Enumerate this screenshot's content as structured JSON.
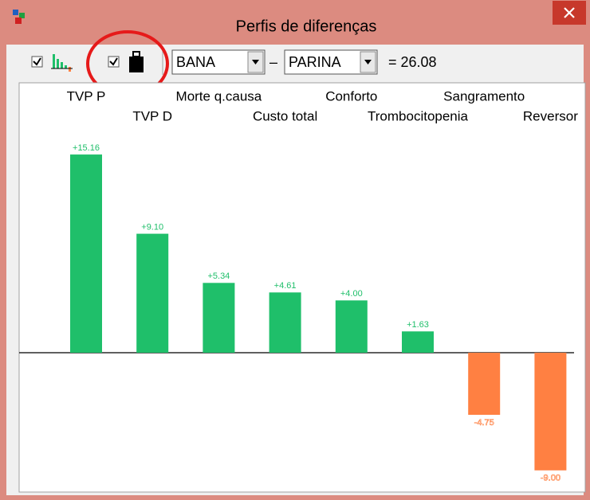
{
  "window": {
    "title": "Perfis de diferenças"
  },
  "toolbar": {
    "left_option": "BANA",
    "separator": "–",
    "right_option": "PARINA",
    "result": "= 26.08"
  },
  "chart_data": {
    "type": "bar",
    "categories": [
      "TVP P",
      "TVP D",
      "Morte q.causa",
      "Custo total",
      "Conforto",
      "Trombocitopenia",
      "Sangramento",
      "Reversor"
    ],
    "values": [
      15.16,
      9.1,
      5.34,
      4.61,
      4.0,
      1.63,
      -4.75,
      -9.0
    ],
    "value_labels": [
      "+15.16",
      "+9.10",
      "+5.34",
      "+4.61",
      "+4.00",
      "+1.63",
      "-4.75",
      "-9.00"
    ],
    "colors": [
      "#1fbf6a",
      "#1fbf6a",
      "#1fbf6a",
      "#1fbf6a",
      "#1fbf6a",
      "#1fbf6a",
      "#ff8042",
      "#ff8042"
    ]
  }
}
